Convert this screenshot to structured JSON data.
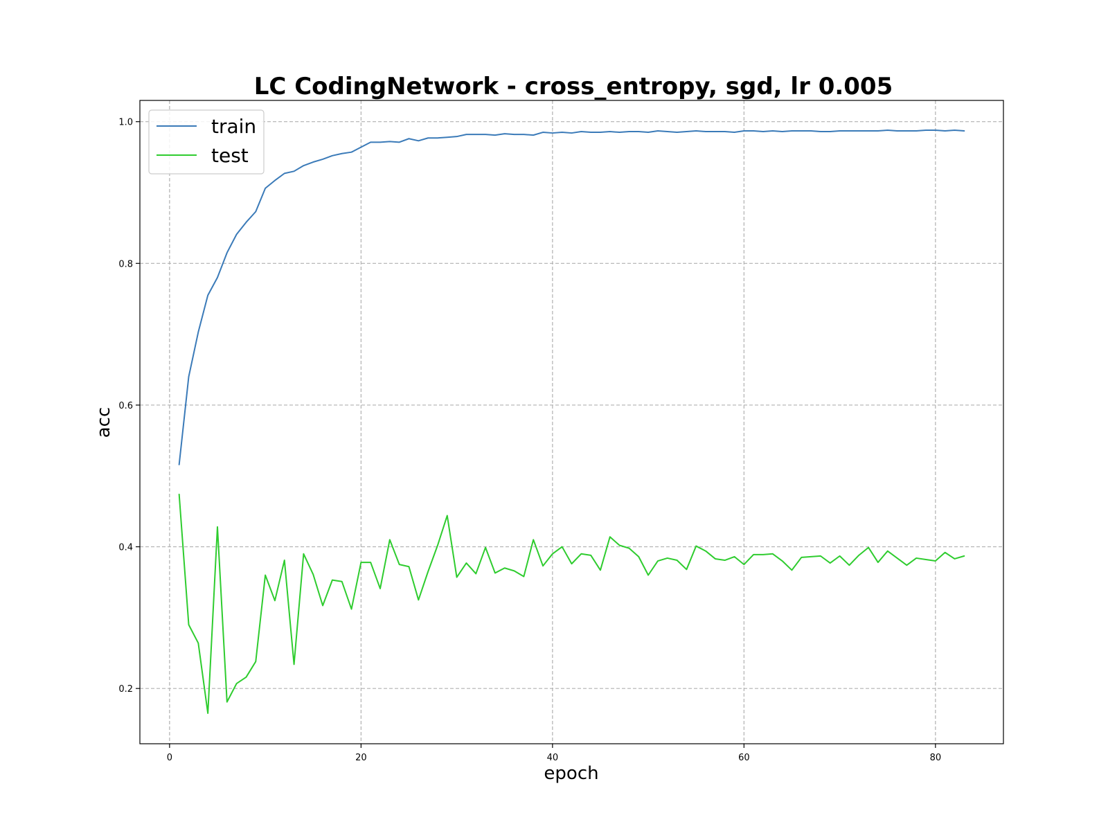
{
  "chart_data": {
    "type": "line",
    "title": "LC CodingNetwork - cross_entropy, sgd, lr 0.005",
    "xlabel": "epoch",
    "ylabel": "acc",
    "xlim": [
      -3.1,
      87.1
    ],
    "ylim": [
      0.122,
      1.03
    ],
    "xticks": [
      0,
      20,
      40,
      60,
      80
    ],
    "xtick_labels": [
      "0",
      "20",
      "40",
      "60",
      "80"
    ],
    "yticks": [
      0.2,
      0.4,
      0.6,
      0.8,
      1.0
    ],
    "ytick_labels": [
      "0.2",
      "0.4",
      "0.6",
      "0.8",
      "1.0"
    ],
    "grid": true,
    "legend_position": "upper-left",
    "x": [
      1,
      2,
      3,
      4,
      5,
      6,
      7,
      8,
      9,
      10,
      11,
      12,
      13,
      14,
      15,
      16,
      17,
      18,
      19,
      20,
      21,
      22,
      23,
      24,
      25,
      26,
      27,
      28,
      29,
      30,
      31,
      32,
      33,
      34,
      35,
      36,
      37,
      38,
      39,
      40,
      41,
      42,
      43,
      44,
      45,
      46,
      47,
      48,
      49,
      50,
      51,
      52,
      53,
      54,
      55,
      56,
      57,
      58,
      59,
      60,
      61,
      62,
      63,
      64,
      65,
      66,
      67,
      68,
      69,
      70,
      71,
      72,
      73,
      74,
      75,
      76,
      77,
      78,
      79,
      80,
      81,
      82,
      83
    ],
    "series": [
      {
        "name": "train",
        "color": "#3a7ab8",
        "values": [
          0.516,
          0.64,
          0.703,
          0.755,
          0.78,
          0.815,
          0.841,
          0.858,
          0.873,
          0.906,
          0.917,
          0.927,
          0.93,
          0.938,
          0.943,
          0.947,
          0.952,
          0.955,
          0.957,
          0.964,
          0.971,
          0.971,
          0.972,
          0.971,
          0.976,
          0.973,
          0.977,
          0.977,
          0.978,
          0.979,
          0.982,
          0.982,
          0.982,
          0.981,
          0.983,
          0.982,
          0.982,
          0.981,
          0.985,
          0.984,
          0.985,
          0.984,
          0.986,
          0.985,
          0.985,
          0.986,
          0.985,
          0.986,
          0.986,
          0.985,
          0.987,
          0.986,
          0.985,
          0.986,
          0.987,
          0.986,
          0.986,
          0.986,
          0.985,
          0.987,
          0.987,
          0.986,
          0.987,
          0.986,
          0.987,
          0.987,
          0.987,
          0.986,
          0.986,
          0.987,
          0.987,
          0.987,
          0.987,
          0.987,
          0.988,
          0.987,
          0.987,
          0.987,
          0.988,
          0.988,
          0.987,
          0.988,
          0.987
        ]
      },
      {
        "name": "test",
        "color": "#2ecc2e",
        "values": [
          0.474,
          0.29,
          0.264,
          0.165,
          0.428,
          0.181,
          0.207,
          0.216,
          0.238,
          0.36,
          0.324,
          0.381,
          0.234,
          0.39,
          0.361,
          0.317,
          0.353,
          0.351,
          0.312,
          0.378,
          0.378,
          0.341,
          0.41,
          0.375,
          0.372,
          0.325,
          0.365,
          0.402,
          0.444,
          0.357,
          0.377,
          0.362,
          0.399,
          0.363,
          0.37,
          0.366,
          0.358,
          0.41,
          0.373,
          0.39,
          0.4,
          0.376,
          0.39,
          0.388,
          0.367,
          0.414,
          0.402,
          0.398,
          0.386,
          0.36,
          0.38,
          0.384,
          0.381,
          0.368,
          0.401,
          0.394,
          0.383,
          0.381,
          0.386,
          0.375,
          0.389,
          0.389,
          0.39,
          0.38,
          0.367,
          0.385,
          0.386,
          0.387,
          0.377,
          0.387,
          0.374,
          0.388,
          0.399,
          0.378,
          0.394,
          0.384,
          0.374,
          0.384,
          0.382,
          0.38,
          0.392,
          0.383,
          0.387
        ]
      }
    ]
  }
}
